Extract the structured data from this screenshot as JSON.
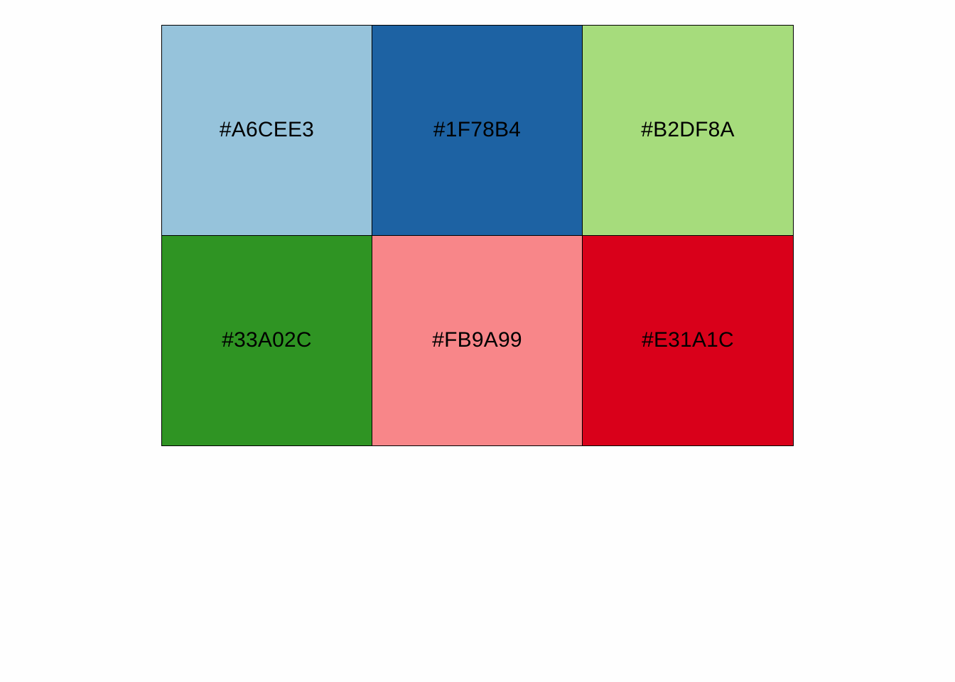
{
  "palette": {
    "swatches": [
      {
        "label": "#A6CEE3",
        "fill": "#96C3DB"
      },
      {
        "label": "#1F78B4",
        "fill": "#1D62A3"
      },
      {
        "label": "#B2DF8A",
        "fill": "#A6DC7C"
      },
      {
        "label": "#33A02C",
        "fill": "#2F9423"
      },
      {
        "label": "#FB9A99",
        "fill": "#F88689"
      },
      {
        "label": "#E31A1C",
        "fill": "#D9001A"
      }
    ]
  }
}
